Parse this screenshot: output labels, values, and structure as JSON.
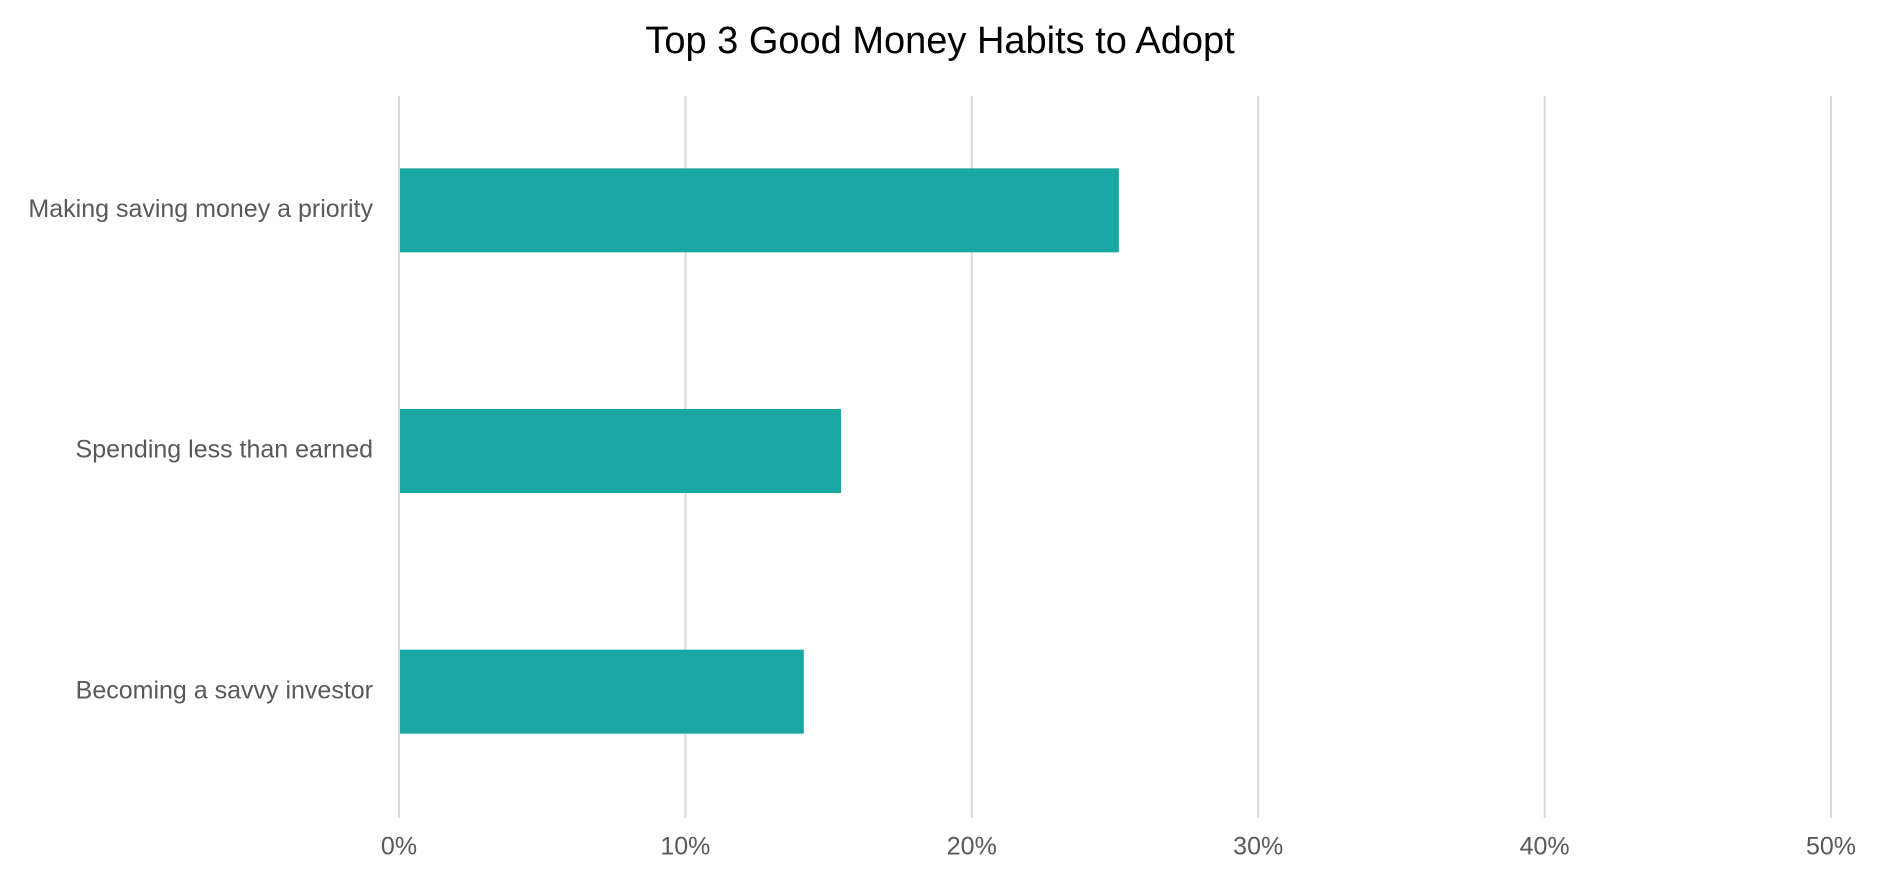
{
  "chart_data": {
    "type": "bar",
    "orientation": "horizontal",
    "title": "Top 3 Good Money Habits to Adopt",
    "categories": [
      "Making saving money a priority",
      "Spending less than earned",
      "Becoming a savvy investor"
    ],
    "values": [
      25.1,
      15.4,
      14.1
    ],
    "color": "#1aa6a2",
    "xlim": [
      0,
      50
    ],
    "xticks": [
      {
        "value": 0,
        "label": "0%"
      },
      {
        "value": 10,
        "label": "10%"
      },
      {
        "value": 20,
        "label": "20%"
      },
      {
        "value": 30,
        "label": "30%"
      },
      {
        "value": 40,
        "label": "40%"
      },
      {
        "value": 50,
        "label": "50%"
      }
    ],
    "grid": true
  }
}
